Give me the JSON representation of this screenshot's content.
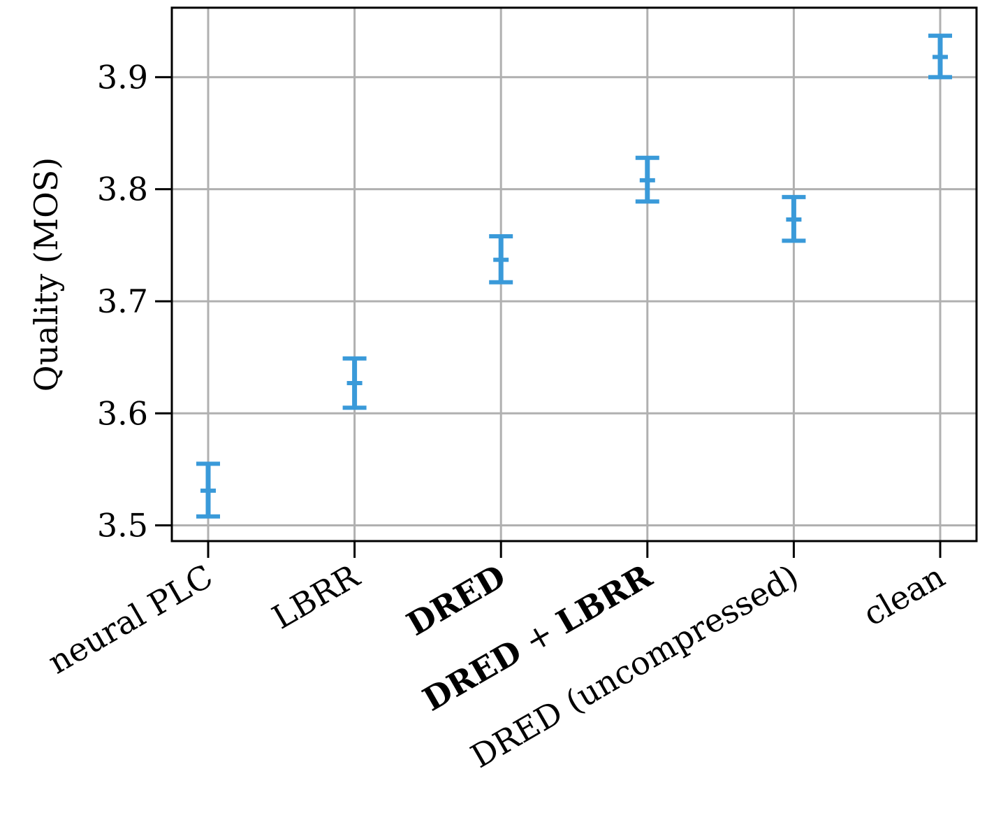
{
  "chart_data": {
    "type": "scatter",
    "title": "",
    "xlabel": "",
    "ylabel": "Quality (MOS)",
    "categories": [
      {
        "parts": [
          {
            "text": "neural PLC",
            "bold": false
          }
        ]
      },
      {
        "parts": [
          {
            "text": "LBRR",
            "bold": false
          }
        ]
      },
      {
        "parts": [
          {
            "text": "DRED",
            "bold": true
          }
        ]
      },
      {
        "parts": [
          {
            "text": "DRED",
            "bold": true
          },
          {
            "text": " + ",
            "bold": false
          },
          {
            "text": "LBRR",
            "bold": true
          }
        ]
      },
      {
        "parts": [
          {
            "text": "DRED (uncompressed)",
            "bold": false
          }
        ]
      },
      {
        "parts": [
          {
            "text": "clean",
            "bold": false
          }
        ]
      }
    ],
    "series": [
      {
        "values": [
          3.531,
          3.627,
          3.737,
          3.808,
          3.773,
          3.918
        ],
        "lower": [
          3.508,
          3.605,
          3.717,
          3.789,
          3.754,
          3.9
        ],
        "upper": [
          3.555,
          3.649,
          3.758,
          3.828,
          3.793,
          3.937
        ],
        "color": "#3a9ad9"
      }
    ],
    "ylim": [
      3.486,
      3.962
    ],
    "yticks": [
      "3.5",
      "3.6",
      "3.7",
      "3.8",
      "3.9"
    ],
    "grid": true,
    "legend": "none"
  }
}
